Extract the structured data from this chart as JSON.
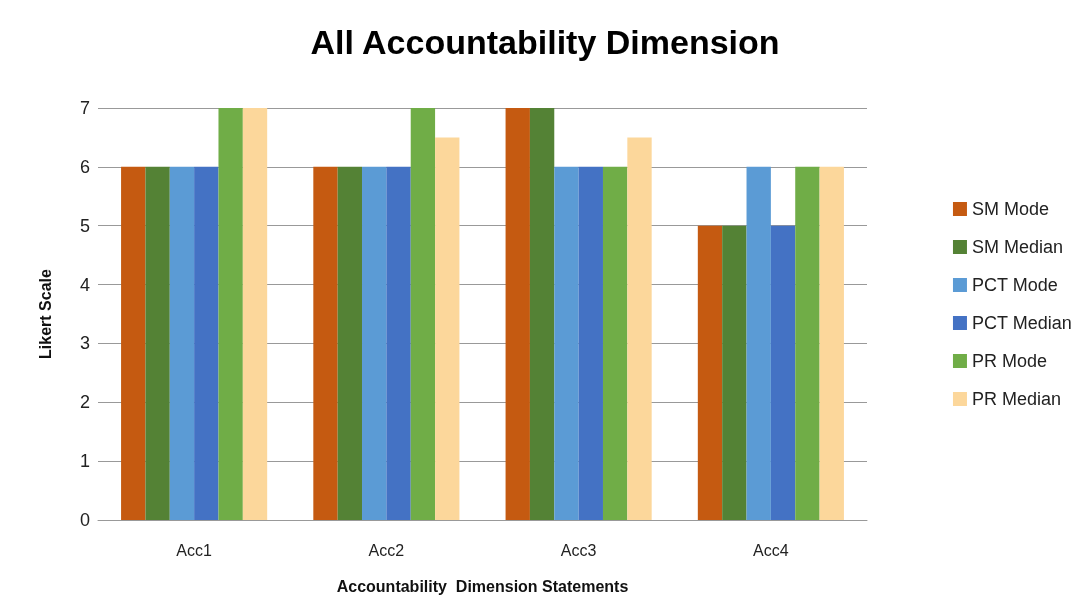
{
  "chart_data": {
    "type": "bar",
    "title": "All Accountability Dimension",
    "xlabel": "Accountability  Dimension Statements",
    "ylabel": "Likert Scale",
    "categories": [
      "Acc1",
      "Acc2",
      "Acc3",
      "Acc4"
    ],
    "series": [
      {
        "name": "SM Mode",
        "color": "#c55a11",
        "values": [
          6,
          6,
          7,
          5
        ]
      },
      {
        "name": "SM Median",
        "color": "#548235",
        "values": [
          6,
          6,
          7,
          5
        ]
      },
      {
        "name": "PCT Mode",
        "color": "#5b9bd5",
        "values": [
          6,
          6,
          6,
          6
        ]
      },
      {
        "name": "PCT Median",
        "color": "#4472c4",
        "values": [
          6,
          6,
          6,
          5
        ]
      },
      {
        "name": "PR Mode",
        "color": "#70ad47",
        "values": [
          7,
          7,
          6,
          6
        ]
      },
      {
        "name": "PR Median",
        "color": "#fcd79b",
        "values": [
          7,
          6.5,
          6.5,
          6
        ]
      }
    ],
    "ylim": [
      0,
      7
    ],
    "yticks": [
      0,
      1,
      2,
      3,
      4,
      5,
      6,
      7
    ],
    "grid": "y",
    "legend": "right"
  }
}
